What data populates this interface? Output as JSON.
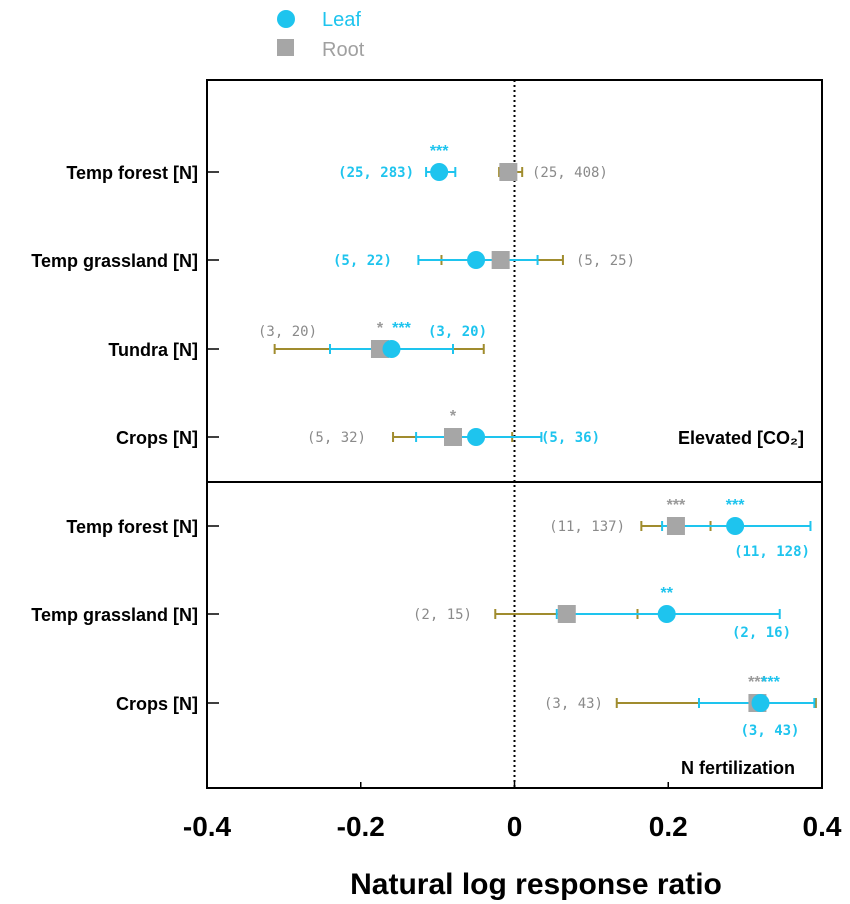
{
  "chart_data": {
    "type": "scatter",
    "xlabel": "Natural log response ratio",
    "xlim": [
      -0.4,
      0.4
    ],
    "xticks": [
      "-0.4",
      "-0.2",
      "0",
      "0.2",
      "0.4"
    ],
    "grid": false,
    "legend_position": "top-left",
    "colors": {
      "leaf": "#1ec4ee",
      "root": "#a6a6a6",
      "root_errorbar": "#a08c2e"
    },
    "series": [
      {
        "name": "Leaf",
        "marker": "circle"
      },
      {
        "name": "Root",
        "marker": "square"
      }
    ],
    "panels": [
      {
        "label": "Elevated [CO₂]",
        "rows": [
          {
            "category": "Temp forest [N]",
            "leaf": {
              "value": -0.098,
              "ci": [
                -0.115,
                -0.077
              ],
              "n": "(25, 283)",
              "sig": "***"
            },
            "root": {
              "value": -0.008,
              "ci": [
                -0.02,
                0.01
              ],
              "n": "(25, 408)",
              "sig": ""
            }
          },
          {
            "category": "Temp grassland [N]",
            "leaf": {
              "value": -0.05,
              "ci": [
                -0.125,
                0.03
              ],
              "n": "(5, 22)",
              "sig": ""
            },
            "root": {
              "value": -0.018,
              "ci": [
                -0.095,
                0.063
              ],
              "n": "(5, 25)",
              "sig": ""
            }
          },
          {
            "category": "Tundra [N]",
            "leaf": {
              "value": -0.16,
              "ci": [
                -0.24,
                -0.08
              ],
              "n": "(3, 20)",
              "sig": "***"
            },
            "root": {
              "value": -0.175,
              "ci": [
                -0.312,
                -0.04
              ],
              "n": "(3, 20)",
              "sig": "*"
            }
          },
          {
            "category": "Crops [N]",
            "leaf": {
              "value": -0.05,
              "ci": [
                -0.128,
                0.035
              ],
              "n": "(5, 36)",
              "sig": ""
            },
            "root": {
              "value": -0.08,
              "ci": [
                -0.158,
                -0.003
              ],
              "n": "(5, 32)",
              "sig": "*"
            }
          }
        ]
      },
      {
        "label": "N fertilization",
        "rows": [
          {
            "category": "Temp forest [N]",
            "leaf": {
              "value": 0.287,
              "ci": [
                0.192,
                0.385
              ],
              "n": "(11, 128)",
              "sig": "***"
            },
            "root": {
              "value": 0.21,
              "ci": [
                0.165,
                0.255
              ],
              "n": "(11, 137)",
              "sig": "***"
            }
          },
          {
            "category": "Temp grassland [N]",
            "leaf": {
              "value": 0.198,
              "ci": [
                0.055,
                0.345
              ],
              "n": "(2, 16)",
              "sig": "**"
            },
            "root": {
              "value": 0.068,
              "ci": [
                -0.025,
                0.16
              ],
              "n": "(2, 15)",
              "sig": ""
            }
          },
          {
            "category": "Crops [N]",
            "leaf": {
              "value": 0.32,
              "ci": [
                0.24,
                0.39
              ],
              "n": "(3, 43)",
              "sig": "***"
            },
            "root": {
              "value": 0.316,
              "ci": [
                0.133,
                0.392
              ],
              "n": "(3, 43)",
              "sig": "***"
            }
          }
        ]
      }
    ]
  }
}
